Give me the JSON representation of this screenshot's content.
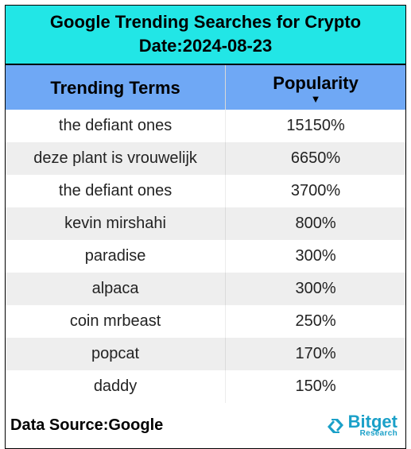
{
  "title_line1": "Google Trending Searches for Crypto",
  "title_line2": "Date:2024-08-23",
  "title_bg": "#22e6e6",
  "title_color": "#000000",
  "header_bg": "#6fa8f5",
  "header_color": "#000000",
  "row_alt_bg": "#eeeeee",
  "row_bg": "#ffffff",
  "columns": [
    "Trending Terms",
    "Popularity"
  ],
  "sort_indicator": "▼",
  "rows": [
    {
      "term": "the defiant ones",
      "pop": "15150%"
    },
    {
      "term": "deze plant is vrouwelijk",
      "pop": "6650%"
    },
    {
      "term": "the defiant ones",
      "pop": "3700%"
    },
    {
      "term": "kevin mirshahi",
      "pop": "800%"
    },
    {
      "term": "paradise",
      "pop": "300%"
    },
    {
      "term": "alpaca",
      "pop": "300%"
    },
    {
      "term": "coin mrbeast",
      "pop": "250%"
    },
    {
      "term": "popcat",
      "pop": "170%"
    },
    {
      "term": "daddy",
      "pop": "150%"
    }
  ],
  "source_label": "Data Source:Google",
  "brand_name": "Bitget",
  "brand_sub": "Research",
  "brand_color": "#1aa0c8"
}
